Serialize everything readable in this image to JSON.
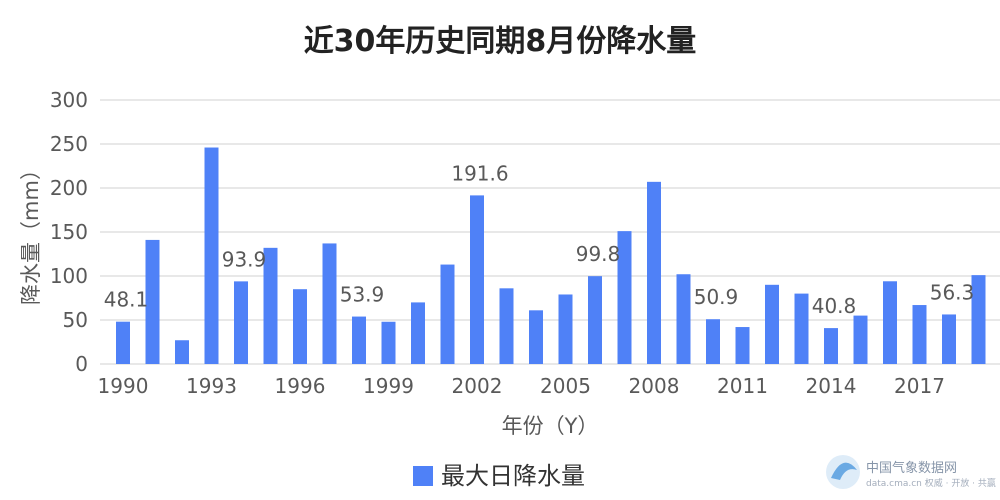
{
  "chart_data": {
    "type": "bar",
    "title": "近30年历史同期8月份降水量",
    "xlabel": "年份（Y）",
    "ylabel": "降水量（mm）",
    "ylim": [
      0,
      300
    ],
    "yticks": [
      0,
      50,
      100,
      150,
      200,
      250,
      300
    ],
    "grid": true,
    "legend_placement": "bottom",
    "x": [
      1990,
      1991,
      1992,
      1993,
      1994,
      1995,
      1996,
      1997,
      1998,
      1999,
      2000,
      2001,
      2002,
      2003,
      2004,
      2005,
      2006,
      2007,
      2008,
      2009,
      2010,
      2011,
      2012,
      2013,
      2014,
      2015,
      2016,
      2017,
      2018,
      2019
    ],
    "x_tick_labels": [
      "1990",
      "1993",
      "1996",
      "1999",
      "2002",
      "2005",
      "2008",
      "2011",
      "2014",
      "2017"
    ],
    "series": [
      {
        "name": "最大日降水量",
        "color": "#4f81f7",
        "values": [
          48.1,
          141,
          27,
          246,
          93.9,
          132,
          85,
          137,
          53.9,
          48,
          70,
          113,
          191.6,
          86,
          61,
          79,
          99.8,
          151,
          207,
          102,
          50.9,
          42,
          90,
          80,
          40.8,
          55,
          94,
          67,
          56.3,
          101
        ]
      }
    ],
    "data_labels": [
      {
        "x": 1990,
        "text": "48.1"
      },
      {
        "x": 1994,
        "text": "93.9"
      },
      {
        "x": 1998,
        "text": "53.9"
      },
      {
        "x": 2002,
        "text": "191.6"
      },
      {
        "x": 2006,
        "text": "99.8"
      },
      {
        "x": 2010,
        "text": "50.9"
      },
      {
        "x": 2014,
        "text": "40.8"
      },
      {
        "x": 2018,
        "text": "56.3"
      }
    ]
  },
  "watermark": {
    "text": "中国气象数据网",
    "sub": "data.cma.cn 权威 · 开放 · 共赢"
  },
  "colors": {
    "bar": "#4f81f7",
    "grid": "#d0d0d0"
  }
}
